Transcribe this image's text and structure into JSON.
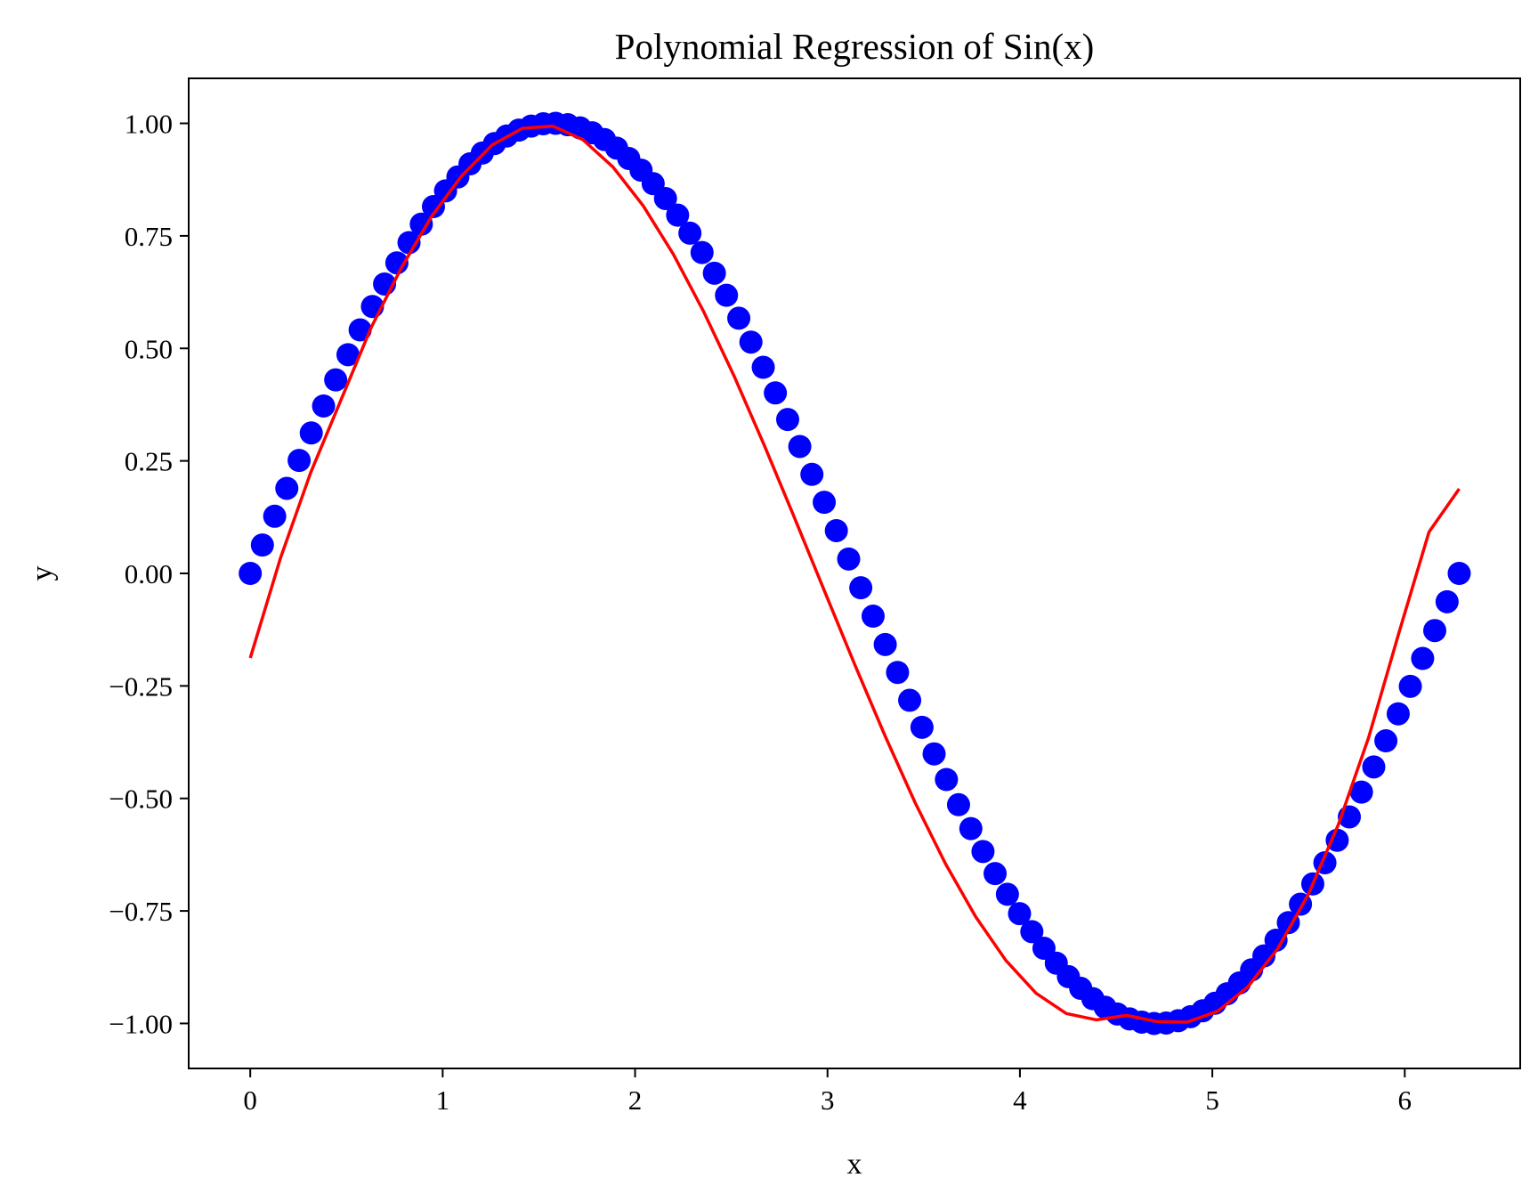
{
  "chart_data": {
    "type": "scatter",
    "title": "Polynomial Regression of Sin(x)",
    "xlabel": "x",
    "ylabel": "y",
    "xlim": [
      -0.32,
      6.6
    ],
    "ylim": [
      -1.1,
      1.1
    ],
    "grid": false,
    "legend": "none",
    "x_ticks": [
      {
        "value": 0,
        "label": "0"
      },
      {
        "value": 1,
        "label": "1"
      },
      {
        "value": 2,
        "label": "2"
      },
      {
        "value": 3,
        "label": "3"
      },
      {
        "value": 4,
        "label": "4"
      },
      {
        "value": 5,
        "label": "5"
      },
      {
        "value": 6,
        "label": "6"
      }
    ],
    "y_ticks": [
      {
        "value": 1.0,
        "label": "1.00"
      },
      {
        "value": 0.75,
        "label": "0.75"
      },
      {
        "value": 0.5,
        "label": "0.50"
      },
      {
        "value": 0.25,
        "label": "0.25"
      },
      {
        "value": 0.0,
        "label": "0.00"
      },
      {
        "value": -0.25,
        "label": "−0.25"
      },
      {
        "value": -0.5,
        "label": "−0.50"
      },
      {
        "value": -0.75,
        "label": "−0.75"
      },
      {
        "value": -1.0,
        "label": "−1.00"
      }
    ],
    "series": [
      {
        "kind": "scatter",
        "color": "#0000ff",
        "x": [
          0.0,
          0.063,
          0.127,
          0.19,
          0.254,
          0.317,
          0.381,
          0.444,
          0.508,
          0.571,
          0.635,
          0.698,
          0.762,
          0.825,
          0.889,
          0.952,
          1.015,
          1.079,
          1.142,
          1.206,
          1.269,
          1.333,
          1.396,
          1.46,
          1.523,
          1.587,
          1.65,
          1.714,
          1.777,
          1.841,
          1.904,
          1.967,
          2.031,
          2.094,
          2.158,
          2.221,
          2.285,
          2.348,
          2.412,
          2.475,
          2.539,
          2.602,
          2.666,
          2.729,
          2.793,
          2.856,
          2.919,
          2.983,
          3.046,
          3.11,
          3.173,
          3.237,
          3.3,
          3.364,
          3.427,
          3.491,
          3.554,
          3.618,
          3.681,
          3.745,
          3.808,
          3.871,
          3.935,
          3.998,
          4.062,
          4.125,
          4.189,
          4.252,
          4.316,
          4.379,
          4.443,
          4.506,
          4.57,
          4.633,
          4.697,
          4.76,
          4.823,
          4.887,
          4.95,
          5.014,
          5.077,
          5.141,
          5.204,
          5.268,
          5.331,
          5.395,
          5.458,
          5.522,
          5.585,
          5.649,
          5.712,
          5.775,
          5.839,
          5.902,
          5.966,
          6.029,
          6.093,
          6.156,
          6.22,
          6.283
        ],
        "y": [
          0.0,
          0.063,
          0.127,
          0.189,
          0.251,
          0.312,
          0.372,
          0.43,
          0.486,
          0.541,
          0.593,
          0.643,
          0.69,
          0.735,
          0.776,
          0.815,
          0.85,
          0.881,
          0.91,
          0.934,
          0.955,
          0.972,
          0.985,
          0.994,
          0.999,
          1.0,
          0.997,
          0.99,
          0.979,
          0.964,
          0.945,
          0.922,
          0.896,
          0.866,
          0.833,
          0.796,
          0.756,
          0.713,
          0.667,
          0.618,
          0.567,
          0.514,
          0.458,
          0.401,
          0.342,
          0.282,
          0.22,
          0.158,
          0.095,
          0.032,
          -0.032,
          -0.095,
          -0.158,
          -0.22,
          -0.282,
          -0.342,
          -0.401,
          -0.458,
          -0.514,
          -0.567,
          -0.618,
          -0.667,
          -0.713,
          -0.756,
          -0.796,
          -0.833,
          -0.866,
          -0.896,
          -0.922,
          -0.945,
          -0.964,
          -0.979,
          -0.99,
          -0.997,
          -1.0,
          -0.999,
          -0.994,
          -0.985,
          -0.972,
          -0.955,
          -0.934,
          -0.91,
          -0.881,
          -0.85,
          -0.815,
          -0.776,
          -0.735,
          -0.69,
          -0.643,
          -0.593,
          -0.541,
          -0.486,
          -0.43,
          -0.372,
          -0.312,
          -0.251,
          -0.189,
          -0.127,
          -0.063,
          0.0
        ]
      },
      {
        "kind": "line",
        "color": "#ff0000",
        "x": [
          0.0,
          0.157,
          0.314,
          0.471,
          0.628,
          0.785,
          0.942,
          1.1,
          1.257,
          1.414,
          1.571,
          1.728,
          1.885,
          2.042,
          2.199,
          2.356,
          2.513,
          2.67,
          2.827,
          2.985,
          3.142,
          3.299,
          3.456,
          3.613,
          3.77,
          3.927,
          4.084,
          4.241,
          4.398,
          4.555,
          4.712,
          4.869,
          5.027,
          5.184,
          5.341,
          5.498,
          5.655,
          5.812,
          5.969,
          6.126,
          6.283
        ],
        "y": [
          -0.188,
          0.034,
          0.224,
          0.385,
          0.546,
          0.679,
          0.793,
          0.884,
          0.952,
          0.989,
          0.994,
          0.964,
          0.903,
          0.817,
          0.709,
          0.582,
          0.44,
          0.286,
          0.125,
          -0.04,
          -0.203,
          -0.361,
          -0.51,
          -0.645,
          -0.763,
          -0.86,
          -0.933,
          -0.978,
          -0.992,
          -0.982,
          -0.996,
          -0.997,
          -0.973,
          -0.919,
          -0.833,
          -0.714,
          -0.558,
          -0.365,
          -0.133,
          0.092,
          0.188
        ]
      }
    ]
  }
}
